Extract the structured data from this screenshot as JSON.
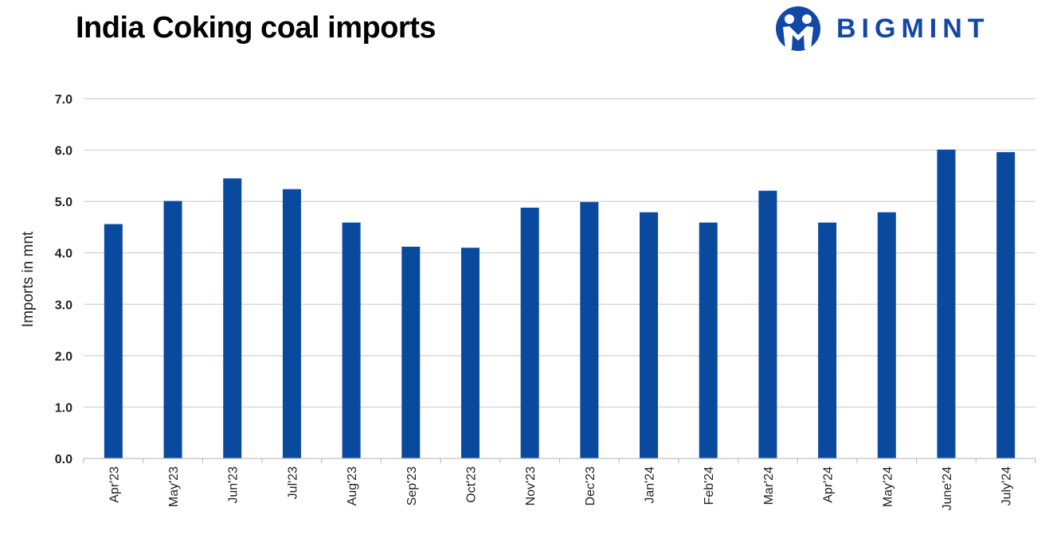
{
  "header": {
    "title": "India Coking coal imports",
    "brand_name": "BIGMINT",
    "brand_color": "#1448a6"
  },
  "chart_data": {
    "type": "bar",
    "ylabel": "Imports in mnt",
    "xlabel": "",
    "ylim": [
      0,
      7
    ],
    "yticks": [
      "0.0",
      "1.0",
      "2.0",
      "3.0",
      "4.0",
      "5.0",
      "6.0",
      "7.0"
    ],
    "grid": true,
    "bar_color": "#0a4a9e",
    "categories": [
      "Apr'23",
      "May'23",
      "Jun'23",
      "Jul'23",
      "Aug'23",
      "Sep'23",
      "Oct'23",
      "Nov'23",
      "Dec'23",
      "Jan'24",
      "Feb'24",
      "Mar'24",
      "Apr'24",
      "May'24",
      "June'24",
      "July'24"
    ],
    "values": [
      4.56,
      5.01,
      5.45,
      5.24,
      4.59,
      4.12,
      4.1,
      4.88,
      4.99,
      4.79,
      4.59,
      5.21,
      4.59,
      4.79,
      6.01,
      5.96
    ]
  }
}
